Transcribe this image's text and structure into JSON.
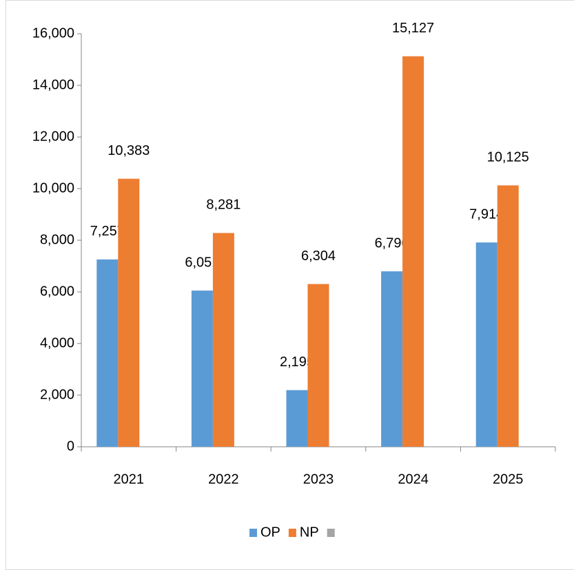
{
  "chart_data": {
    "type": "bar",
    "categories": [
      "2021",
      "2022",
      "2023",
      "2024",
      "2025"
    ],
    "series": [
      {
        "name": "OP",
        "color": "#5b9bd5",
        "values": [
          7257,
          6051,
          2195,
          6796,
          7914
        ],
        "value_labels": [
          "7,257",
          "6,051",
          "2,195",
          "6,796",
          "7,914"
        ]
      },
      {
        "name": "NP",
        "color": "#ed7d31",
        "values": [
          10383,
          8281,
          6304,
          15127,
          10125
        ],
        "value_labels": [
          "10,383",
          "8,281",
          "6,304",
          "15,127",
          "10,125"
        ]
      },
      {
        "color": "#a5a5a5",
        "values": [
          null,
          null,
          null,
          null,
          null
        ]
      }
    ],
    "ylim": [
      0,
      16000
    ],
    "yticks": [
      0,
      {
        "value": 2000,
        "label": "2,000"
      },
      {
        "value": 4000,
        "label": "4,000"
      },
      {
        "value": 6000,
        "label": "6,000"
      },
      {
        "value": 8000,
        "label": "8,000"
      },
      {
        "value": 10000,
        "label": "10,000"
      },
      {
        "value": 12000,
        "label": "12,000"
      },
      {
        "value": 14000,
        "label": "14,000"
      },
      {
        "value": 16000,
        "label": "16,000"
      }
    ],
    "grid": false,
    "legend": "bottom"
  }
}
